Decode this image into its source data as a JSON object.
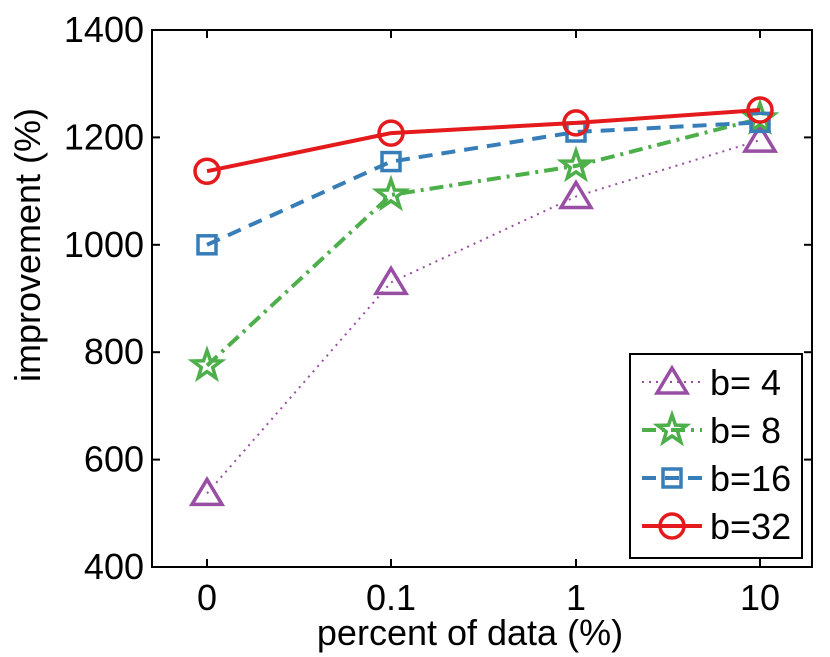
{
  "chart_data": {
    "type": "line",
    "title": "",
    "xlabel": "percent of data (%)",
    "ylabel": "improvement (%)",
    "categories": [
      "0",
      "0.1",
      "1",
      "10"
    ],
    "ylim": [
      400,
      1400
    ],
    "yticks": [
      "400",
      "600",
      "800",
      "1000",
      "1200",
      "1400"
    ],
    "grid": false,
    "legend_position": "bottom-right",
    "series": [
      {
        "name": "b= 4",
        "values": [
          537,
          930,
          1090,
          1195
        ],
        "color": "#984ea3",
        "line": "dotted",
        "marker": "triangle"
      },
      {
        "name": "b= 8",
        "values": [
          775,
          1093,
          1147,
          1235
        ],
        "color": "#4daf4a",
        "line": "dashdot",
        "marker": "star"
      },
      {
        "name": "b=16",
        "values": [
          1000,
          1155,
          1210,
          1228
        ],
        "color": "#377eb8",
        "line": "dashed",
        "marker": "square"
      },
      {
        "name": "b=32",
        "values": [
          1137,
          1208,
          1227,
          1251
        ],
        "color": "#e41a1c",
        "line": "solid",
        "marker": "circle"
      }
    ]
  }
}
